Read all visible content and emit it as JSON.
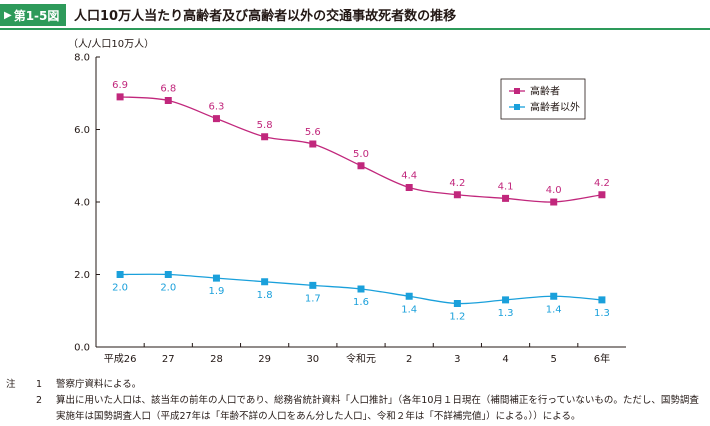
{
  "header": {
    "figure_no": "第1-5図",
    "title": "人口10万人当たり高齢者及び高齢者以外の交通事故死者数の推移"
  },
  "chart_data": {
    "type": "line",
    "ylabel": "（人/人口10万人）",
    "ylim": [
      0,
      8
    ],
    "y_ticks": [
      "0.0",
      "2.0",
      "4.0",
      "6.0",
      "8.0"
    ],
    "categories": [
      "平成26",
      "27",
      "28",
      "29",
      "30",
      "令和元",
      "2",
      "3",
      "4",
      "5",
      "6年"
    ],
    "series": [
      {
        "name": "高齢者",
        "color": "#c1277c",
        "values": [
          6.9,
          6.8,
          6.3,
          5.8,
          5.6,
          5.0,
          4.4,
          4.2,
          4.1,
          4.0,
          4.2
        ]
      },
      {
        "name": "高齢者以外",
        "color": "#1aa0db",
        "values": [
          2.0,
          2.0,
          1.9,
          1.8,
          1.7,
          1.6,
          1.4,
          1.2,
          1.3,
          1.4,
          1.3
        ]
      }
    ],
    "legend_position": "top-right",
    "grid": false
  },
  "notes": [
    {
      "mark": "注",
      "num": "1",
      "text": "警察庁資料による。"
    },
    {
      "mark": "",
      "num": "2",
      "text": "算出に用いた人口は、該当年の前年の人口であり、総務省統計資料「人口推計」（各年10月１日現在（補間補正を行っていないもの。ただし、国勢調査"
    },
    {
      "mark": "",
      "num": "",
      "text": "実施年は国勢調査人口（平成27年は「年齢不詳の人口をあん分した人口」、令和２年は「不詳補完値」）による。））による。"
    }
  ]
}
